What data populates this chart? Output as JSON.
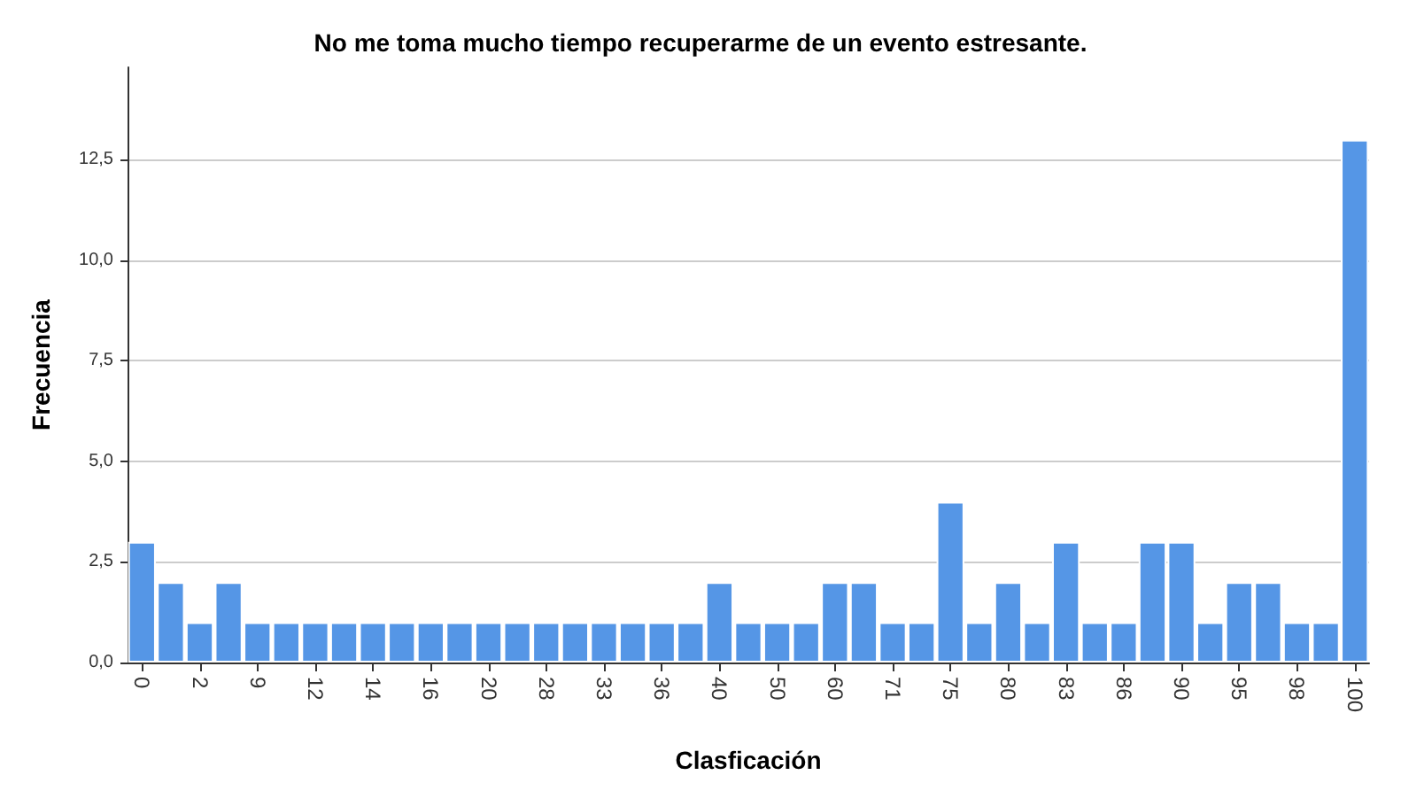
{
  "chart_data": {
    "type": "bar",
    "title": "No me toma mucho tiempo recuperarme de un evento estresante.",
    "xlabel": "Clasficación",
    "ylabel": "Frecuencia",
    "categories": [
      "0",
      null,
      "2",
      null,
      "9",
      null,
      "12",
      null,
      "14",
      null,
      "16",
      null,
      "20",
      null,
      "28",
      null,
      "33",
      null,
      "36",
      null,
      "40",
      null,
      "50",
      null,
      "60",
      null,
      "71",
      null,
      "75",
      null,
      "80",
      null,
      "83",
      null,
      "86",
      null,
      "90",
      null,
      "95",
      null,
      "98",
      null,
      "100"
    ],
    "values": [
      3,
      2,
      1,
      2,
      1,
      1,
      1,
      1,
      1,
      1,
      1,
      1,
      1,
      1,
      1,
      1,
      1,
      1,
      1,
      1,
      2,
      1,
      1,
      1,
      2,
      2,
      1,
      1,
      4,
      1,
      2,
      1,
      3,
      1,
      1,
      3,
      3,
      1,
      2,
      2,
      1,
      1,
      13
    ],
    "color": "#5596e6",
    "ylim": [
      0,
      14.8
    ],
    "yticks": [
      {
        "value": 0,
        "label": "0,0"
      },
      {
        "value": 2.5,
        "label": "2,5"
      },
      {
        "value": 5,
        "label": "5,0"
      },
      {
        "value": 7.5,
        "label": "7,5"
      },
      {
        "value": 10,
        "label": "10,0"
      },
      {
        "value": 12.5,
        "label": "12,5"
      }
    ],
    "grid": "y"
  }
}
